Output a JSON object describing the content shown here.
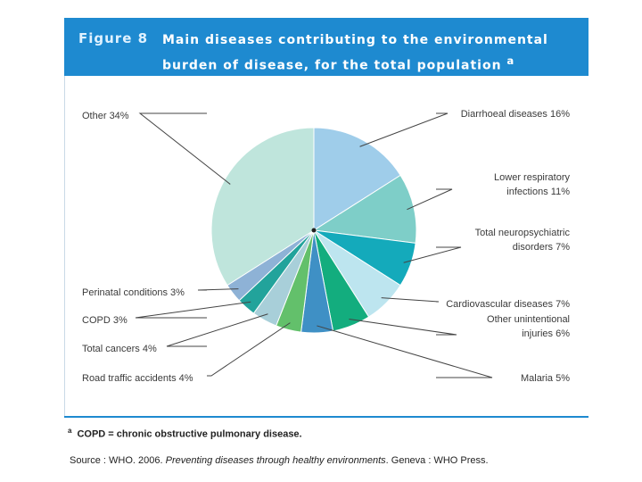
{
  "figure": {
    "label": "Figure 8",
    "title": "Main diseases contributing to the environmental burden of disease, for the total population",
    "title_marker": "a"
  },
  "footnote": {
    "marker": "a",
    "text": "COPD = chronic obstructive pulmonary disease."
  },
  "source": {
    "prefix": "Source : WHO. 2006. ",
    "title": "Preventing diseases through healthy environments",
    "suffix": ". Geneva : WHO Press."
  },
  "colors": {
    "header_bg": "#1e8ad0",
    "header_text": "#ffffff",
    "leader_line": "#444444"
  },
  "chart_data": {
    "type": "pie",
    "title": "Main diseases contributing to the environmental burden of disease, for the total population",
    "unit": "%",
    "slices": [
      {
        "label_lines": [
          "Diarrhoeal diseases 16%"
        ],
        "value": 16,
        "color": "#9fcdea"
      },
      {
        "label_lines": [
          "Lower respiratory",
          "infections 11%"
        ],
        "value": 11,
        "color": "#7ecec8"
      },
      {
        "label_lines": [
          "Total neuropsychiatric",
          "disorders 7%"
        ],
        "value": 7,
        "color": "#14aabb"
      },
      {
        "label_lines": [
          "Cardiovascular diseases 7%"
        ],
        "value": 7,
        "color": "#bde5ef"
      },
      {
        "label_lines": [
          "Other unintentional",
          "injuries 6%"
        ],
        "value": 6,
        "color": "#13ad7e"
      },
      {
        "label_lines": [
          "Malaria 5%"
        ],
        "value": 5,
        "color": "#3f90c5"
      },
      {
        "label_lines": [
          "Road traffic accidents 4%"
        ],
        "value": 4,
        "color": "#63c06b"
      },
      {
        "label_lines": [
          "Total cancers 4%"
        ],
        "value": 4,
        "color": "#a8cfd9"
      },
      {
        "label_lines": [
          "COPD 3%"
        ],
        "value": 3,
        "color": "#22a39b"
      },
      {
        "label_lines": [
          "Perinatal conditions 3%"
        ],
        "value": 3,
        "color": "#8eb2d6"
      },
      {
        "label_lines": [
          "Other 34%"
        ],
        "value": 34,
        "color": "#bfe5dc"
      }
    ]
  }
}
